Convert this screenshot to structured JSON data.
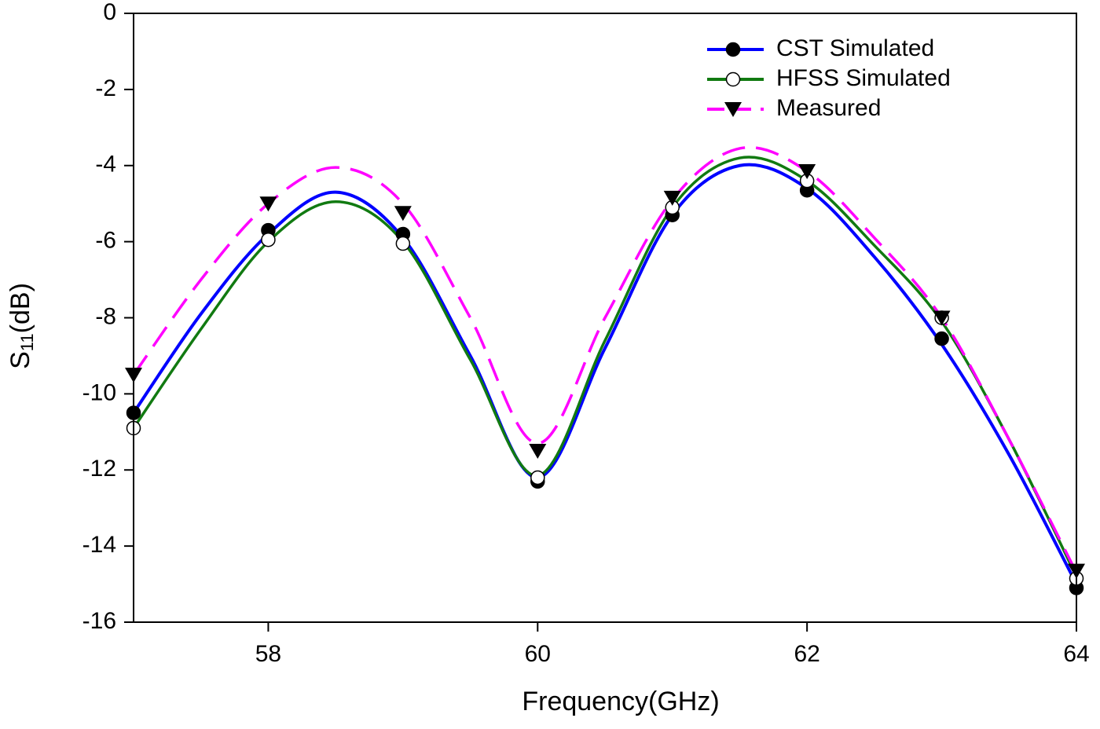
{
  "chart_data": {
    "type": "line",
    "x_label": "Frequency(GHz)",
    "y_label": {
      "main": "S",
      "sub": "11",
      "unit": "(dB)"
    },
    "x": [
      57,
      57.5,
      58,
      58.5,
      59,
      59.5,
      60,
      60.5,
      61,
      61.5,
      62,
      62.5,
      63,
      63.5,
      64
    ],
    "marker_x": [
      57,
      58,
      59,
      60,
      61,
      62,
      63,
      64
    ],
    "series": [
      {
        "name": "CST Simulated",
        "color": "#0000ff",
        "marker": "filled-circle",
        "dash": false,
        "values": [
          -10.5,
          -7.9,
          -5.8,
          -4.7,
          -5.9,
          -9.0,
          -12.2,
          -8.8,
          -5.3,
          -4.0,
          -4.6,
          -6.4,
          -8.7,
          -11.6,
          -15.0
        ],
        "marker_values": [
          -10.5,
          -5.7,
          -5.8,
          -12.3,
          -5.3,
          -4.65,
          -8.55,
          -15.1
        ]
      },
      {
        "name": "HFSS Simulated",
        "color": "#117a11",
        "marker": "open-circle",
        "dash": false,
        "values": [
          -10.9,
          -8.3,
          -6.0,
          -4.95,
          -6.0,
          -9.1,
          -12.15,
          -8.6,
          -5.1,
          -3.8,
          -4.4,
          -6.1,
          -8.1,
          -11.2,
          -14.8
        ],
        "marker_values": [
          -10.9,
          -5.95,
          -6.05,
          -12.2,
          -5.1,
          -4.4,
          -8.0,
          -14.85
        ]
      },
      {
        "name": "Measured",
        "color": "#ff00ff",
        "marker": "triangle-down",
        "dash": true,
        "values": [
          -9.5,
          -7.0,
          -5.0,
          -4.05,
          -5.0,
          -8.0,
          -11.3,
          -8.0,
          -4.9,
          -3.55,
          -4.15,
          -5.9,
          -8.0,
          -11.2,
          -14.7
        ],
        "marker_values": [
          -9.5,
          -5.0,
          -5.25,
          -11.5,
          -4.85,
          -4.15,
          -8.0,
          -14.65
        ]
      }
    ],
    "xlim": [
      57,
      64
    ],
    "xticks": [
      58,
      60,
      62,
      64
    ],
    "ylim": [
      -16,
      0
    ],
    "yticks": [
      -16,
      -14,
      -12,
      -10,
      -8,
      -6,
      -4,
      -2,
      0
    ],
    "legend": "upper-right",
    "grid": false
  }
}
